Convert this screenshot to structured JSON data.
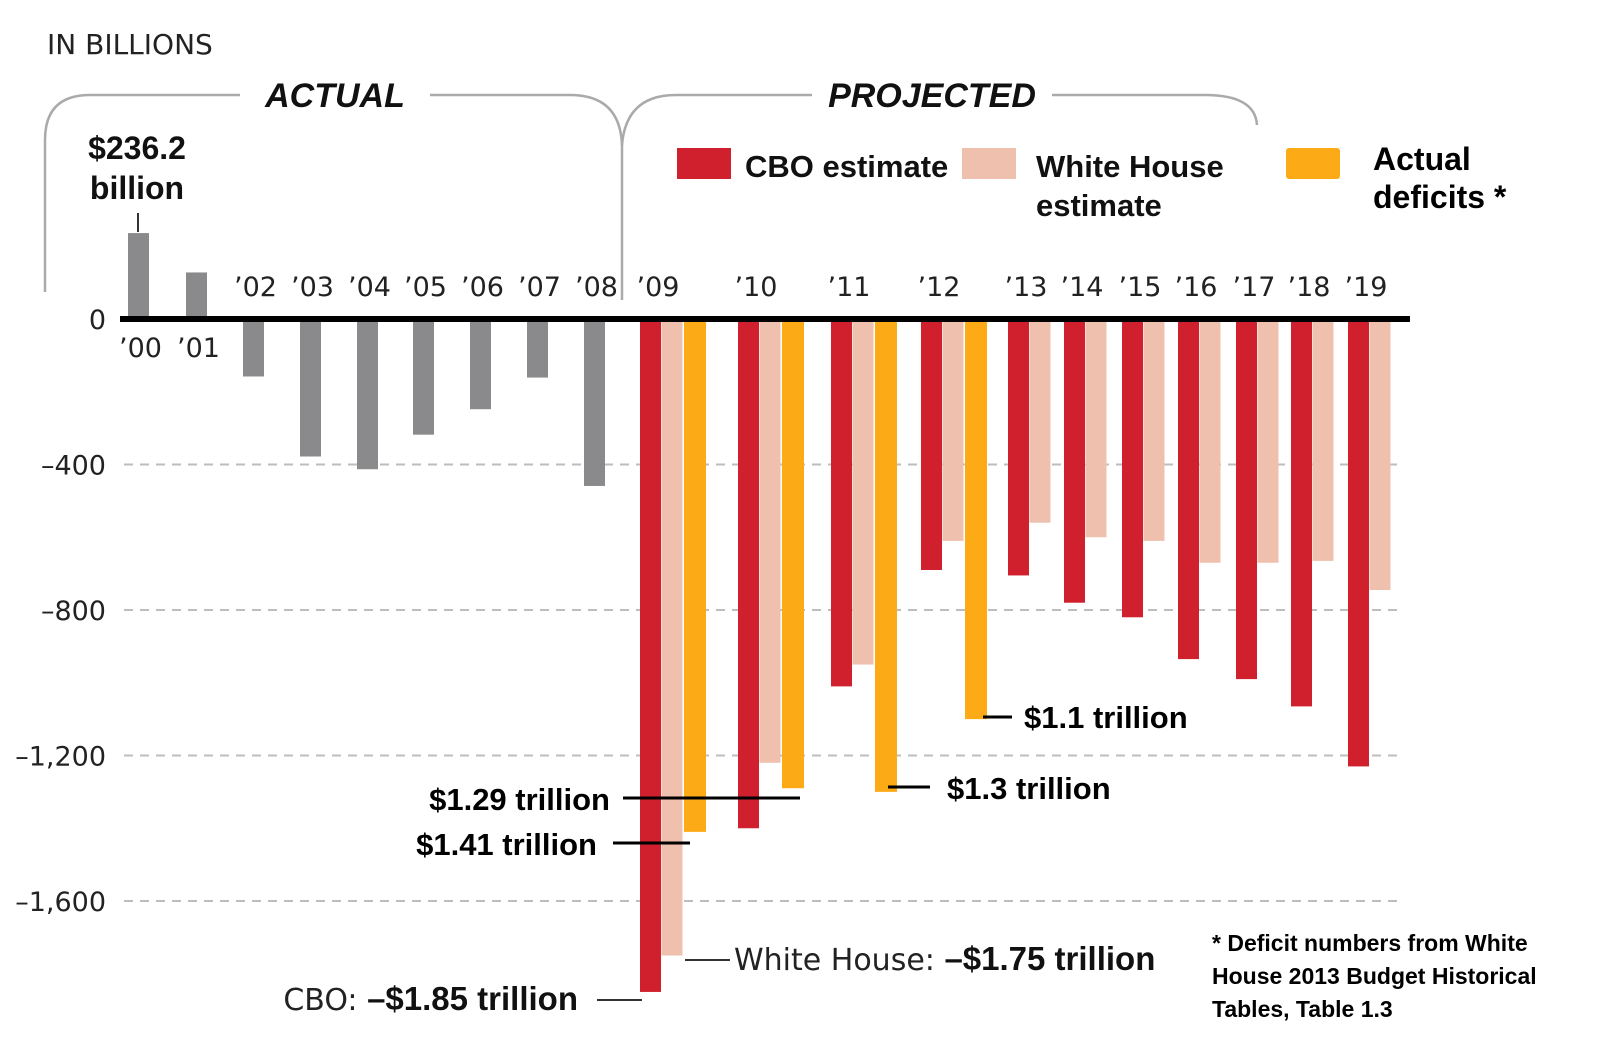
{
  "chart_data": {
    "type": "bar",
    "units_label": "IN BILLIONS",
    "sections": {
      "actual": "ACTUAL",
      "projected": "PROJECTED"
    },
    "yticks": [
      0,
      -400,
      -800,
      -1200,
      -1600
    ],
    "ytick_labels": [
      "0",
      "-400",
      "-800",
      "-1,200",
      "-1,600"
    ],
    "ylim": [
      -1850,
      250
    ],
    "grid": "dashed horizontal",
    "legend_placement": "top-right",
    "legend": [
      {
        "key": "cbo",
        "label": "CBO estimate",
        "color": "#d0202e"
      },
      {
        "key": "wh",
        "label_lines": [
          "White House",
          "estimate"
        ],
        "color": "#efc0ae"
      },
      {
        "key": "actual",
        "label_lines": [
          "Actual",
          "deficits *"
        ],
        "color": "#fdaa17"
      }
    ],
    "colors": {
      "historical": "#8a8a8d",
      "cbo": "#d0202e",
      "wh": "#efc0ae",
      "actual": "#fdaa17",
      "zero_line": "#000000",
      "grid": "#bdbdbd"
    },
    "historical": {
      "name": "Actual",
      "categories": [
        "'00",
        "'01",
        "'02",
        "'03",
        "'04",
        "'05",
        "'06",
        "'07",
        "'08"
      ],
      "values": [
        236.2,
        128,
        -158,
        -378,
        -413,
        -318,
        -248,
        -161,
        -459
      ]
    },
    "projected": {
      "categories": [
        "'09",
        "'10",
        "'11",
        "'12",
        "'13",
        "'14",
        "'15",
        "'16",
        "'17",
        "'18",
        "'19"
      ],
      "series": [
        {
          "name": "CBO estimate",
          "key": "cbo",
          "values": [
            -1850,
            -1400,
            -1010,
            -690,
            -705,
            -780,
            -820,
            -935,
            -990,
            -1065,
            -1230
          ]
        },
        {
          "name": "White House estimate",
          "key": "wh",
          "values": [
            -1750,
            -1220,
            -950,
            -610,
            -560,
            -600,
            -610,
            -670,
            -670,
            -665,
            -745
          ]
        },
        {
          "name": "Actual deficits *",
          "key": "actual",
          "values": [
            -1410,
            -1290,
            -1300,
            -1100,
            null,
            null,
            null,
            null,
            null,
            null,
            null
          ]
        }
      ]
    },
    "annotations": {
      "peak_2000": [
        "$236.2",
        "billion"
      ],
      "actual_2012": "$1.1 trillion",
      "actual_2011": "$1.3 trillion",
      "actual_2010": "$1.29 trillion",
      "actual_2009": "$1.41 trillion",
      "wh_2009_prefix": "White House: ",
      "wh_2009_value": "–$1.75 trillion",
      "cbo_2009_prefix": "CBO: ",
      "cbo_2009_value": "–$1.85 trillion"
    },
    "footnote": [
      "* Deficit numbers from White",
      "House 2013 Budget Historical",
      "Tables, Table 1.3"
    ]
  }
}
